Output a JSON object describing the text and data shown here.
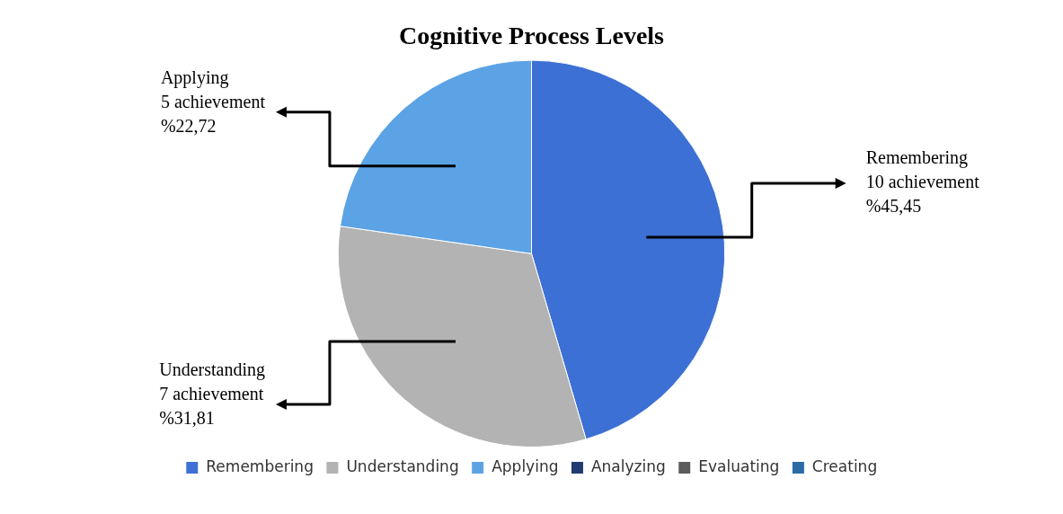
{
  "chart_data": {
    "type": "pie",
    "title": "Cognitive Process Levels",
    "categories": [
      "Remembering",
      "Understanding",
      "Applying",
      "Analyzing",
      "Evaluating",
      "Creating"
    ],
    "values": [
      10,
      7,
      5,
      0,
      0,
      0
    ],
    "colors": [
      "#3d70d4",
      "#b3b3b3",
      "#5ba3e4",
      "#1f3b70",
      "#5c5c5c",
      "#2b6aa6"
    ],
    "value_labels": [
      "10 achievement\n%45,45",
      "7 achievement\n%31,81",
      "5 achievement\n%22,72",
      null,
      null,
      null
    ],
    "legend": "bottom"
  }
}
